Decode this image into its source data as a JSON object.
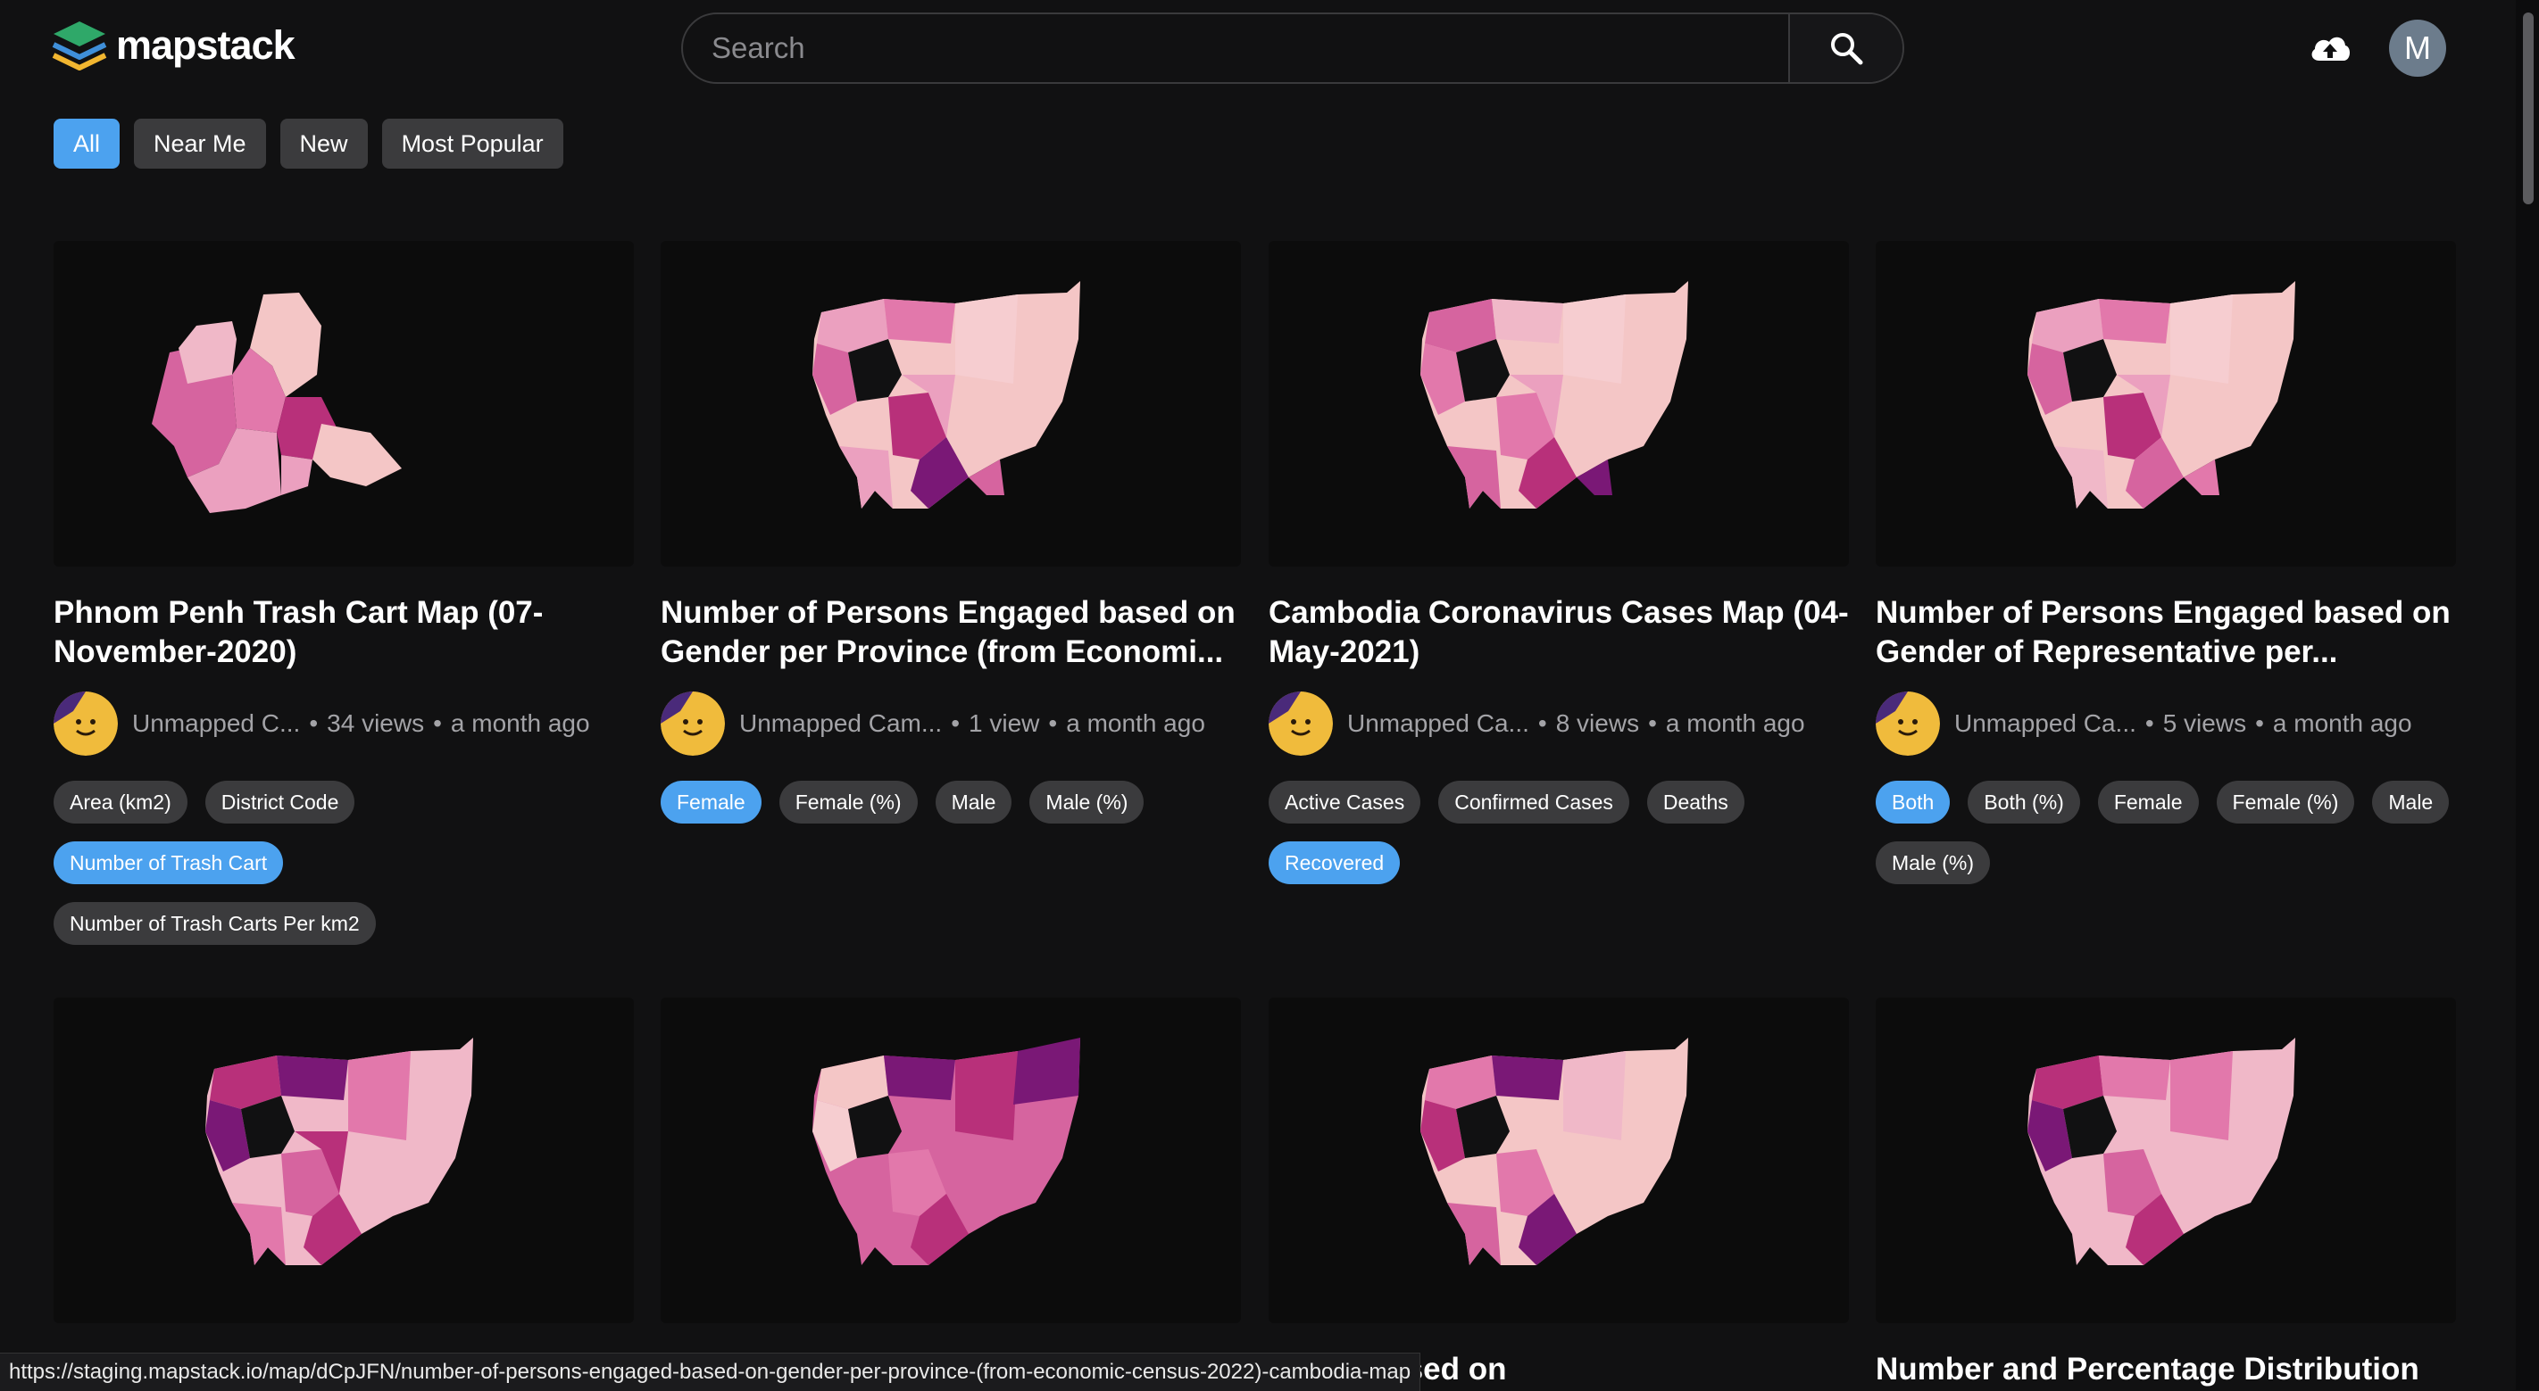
{
  "brand": {
    "name": "mapstack"
  },
  "search": {
    "placeholder": "Search"
  },
  "user": {
    "initial": "M"
  },
  "filters": [
    {
      "label": "All",
      "active": true
    },
    {
      "label": "Near Me",
      "active": false
    },
    {
      "label": "New",
      "active": false
    },
    {
      "label": "Most Popular",
      "active": false
    }
  ],
  "cards": [
    {
      "title": "Phnom Penh Trash Cart Map (07-November-2020)",
      "owner": "Unmapped C...",
      "views": "34 views",
      "time": "a month ago",
      "tags": [
        {
          "label": "Area (km2)",
          "active": false
        },
        {
          "label": "District Code",
          "active": false
        },
        {
          "label": "Number of Trash Cart",
          "active": true
        },
        {
          "label": "Number of Trash Carts Per km2",
          "active": false
        }
      ]
    },
    {
      "title": "Number of Persons Engaged based on Gender per Province (from Economi...",
      "owner": "Unmapped Cam...",
      "views": "1 view",
      "time": "a month ago",
      "tags": [
        {
          "label": "Female",
          "active": true
        },
        {
          "label": "Female (%)",
          "active": false
        },
        {
          "label": "Male",
          "active": false
        },
        {
          "label": "Male (%)",
          "active": false
        }
      ]
    },
    {
      "title": "Cambodia Coronavirus Cases Map (04-May-2021)",
      "owner": "Unmapped Ca...",
      "views": "8 views",
      "time": "a month ago",
      "tags": [
        {
          "label": "Active Cases",
          "active": false
        },
        {
          "label": "Confirmed Cases",
          "active": false
        },
        {
          "label": "Deaths",
          "active": false
        },
        {
          "label": "Recovered",
          "active": true
        }
      ]
    },
    {
      "title": "Number of Persons Engaged based on Gender of Representative per...",
      "owner": "Unmapped Ca...",
      "views": "5 views",
      "time": "a month ago",
      "tags": [
        {
          "label": "Both",
          "active": true
        },
        {
          "label": "Both (%)",
          "active": false
        },
        {
          "label": "Female",
          "active": false
        },
        {
          "label": "Female (%)",
          "active": false
        },
        {
          "label": "Male",
          "active": false
        },
        {
          "label": "Male (%)",
          "active": false
        }
      ]
    }
  ],
  "row2_titles": [
    "",
    "",
    "ments based on",
    "Number and Percentage Distribution"
  ],
  "status_url": "https://staging.mapstack.io/map/dCpJFN/number-of-persons-engaged-based-on-gender-per-province-(from-economic-census-2022)-cambodia-map",
  "colors": {
    "background": "#111112",
    "accent": "#4ca2ef",
    "chip": "#3b3b3d",
    "map_light": "#f4c6c6",
    "map_mid": "#e278ab",
    "map_dark": "#7a1876"
  }
}
